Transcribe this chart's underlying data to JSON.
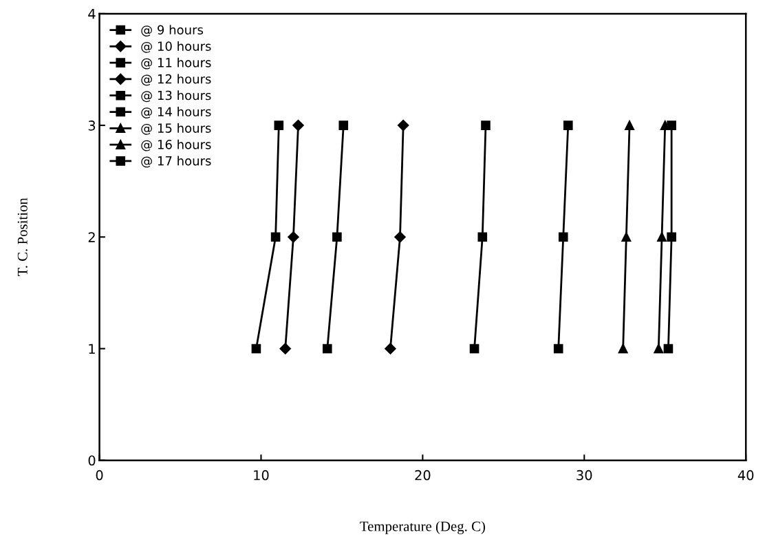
{
  "chart_data": {
    "type": "line",
    "xlabel": "Temperature (Deg. C)",
    "ylabel": "T. C. Position",
    "xlim": [
      0,
      40
    ],
    "xticks": [
      0,
      10,
      20,
      30,
      40
    ],
    "ylim": [
      0,
      4
    ],
    "yticks": [
      0,
      1,
      2,
      3,
      4
    ],
    "legend": "top left",
    "grid": false,
    "line_style": "solid",
    "series": [
      {
        "name": "@ 9 hours",
        "color": "#000000",
        "marker": "square",
        "x": [
          9.7,
          10.9,
          11.1
        ],
        "values": [
          1,
          2,
          3
        ]
      },
      {
        "name": "@ 10 hours",
        "color": "#000000",
        "marker": "diamond",
        "x": [
          11.5,
          12.0,
          12.3
        ],
        "values": [
          1,
          2,
          3
        ]
      },
      {
        "name": "@ 11 hours",
        "color": "#000000",
        "marker": "square",
        "x": [
          14.1,
          14.7,
          15.1
        ],
        "values": [
          1,
          2,
          3
        ]
      },
      {
        "name": "@ 12 hours",
        "color": "#000000",
        "marker": "diamond",
        "x": [
          18.0,
          18.6,
          18.8
        ],
        "values": [
          1,
          2,
          3
        ]
      },
      {
        "name": "@ 13 hours",
        "color": "#000000",
        "marker": "square",
        "x": [
          23.2,
          23.7,
          23.9
        ],
        "values": [
          1,
          2,
          3
        ]
      },
      {
        "name": "@ 14 hours",
        "color": "#000000",
        "marker": "square",
        "x": [
          28.4,
          28.7,
          29.0
        ],
        "values": [
          1,
          2,
          3
        ]
      },
      {
        "name": "@ 15 hours",
        "color": "#000000",
        "marker": "triangle",
        "x": [
          32.4,
          32.6,
          32.8
        ],
        "values": [
          1,
          2,
          3
        ]
      },
      {
        "name": "@ 16 hours",
        "color": "#000000",
        "marker": "triangle",
        "x": [
          34.6,
          34.8,
          35.0
        ],
        "values": [
          1,
          2,
          3
        ]
      },
      {
        "name": "@ 17 hours",
        "color": "#000000",
        "marker": "square",
        "x": [
          35.2,
          35.4,
          35.4
        ],
        "values": [
          1,
          2,
          3
        ]
      }
    ]
  }
}
